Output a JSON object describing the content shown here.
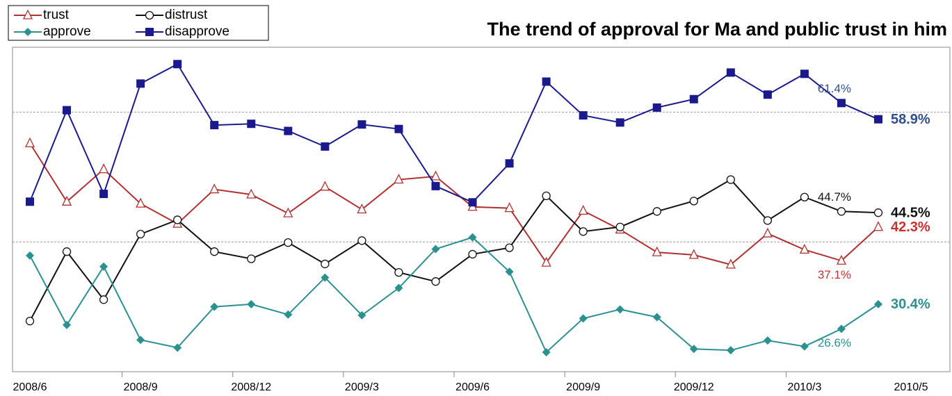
{
  "chart_data": {
    "type": "line",
    "title": "The trend of approval for Ma and public trust in him",
    "categories": [
      "2008/6",
      null,
      null,
      "2008/9",
      null,
      null,
      "2008/12",
      null,
      null,
      "2009/3",
      null,
      null,
      "2009/6",
      null,
      null,
      "2009/9",
      null,
      null,
      "2009/12",
      null,
      null,
      "2010/3",
      null,
      "2010/5"
    ],
    "ylim": [
      20,
      70
    ],
    "grid_lines": [
      40,
      60
    ],
    "series": [
      {
        "name": "trust",
        "color": "#b03030",
        "label_color": "#c83030",
        "marker": "triangle",
        "values": [
          55.2,
          46.2,
          51.2,
          45.9,
          42.8,
          48.1,
          47.3,
          44.4,
          48.5,
          45.0,
          49.6,
          50.1,
          45.4,
          45.2,
          36.8,
          44.8,
          41.9,
          38.4,
          38.0,
          36.5,
          41.3,
          38.8,
          37.1,
          42.3
        ],
        "value_labels": [
          null,
          null,
          null,
          null,
          null,
          null,
          null,
          null,
          null,
          null,
          null,
          null,
          null,
          null,
          null,
          null,
          null,
          null,
          null,
          null,
          null,
          null,
          "37.1%",
          "42.3%"
        ]
      },
      {
        "name": "distrust",
        "color": "#111111",
        "label_color": "#111111",
        "marker": "circle",
        "values": [
          27.8,
          38.5,
          31.1,
          41.2,
          43.4,
          38.5,
          37.4,
          39.9,
          36.6,
          40.2,
          35.3,
          33.9,
          38.1,
          39.1,
          47.1,
          41.6,
          42.3,
          44.7,
          46.3,
          49.6,
          43.3,
          46.9,
          44.7,
          44.5
        ],
        "value_labels": [
          null,
          null,
          null,
          null,
          null,
          null,
          null,
          null,
          null,
          null,
          null,
          null,
          null,
          null,
          null,
          null,
          null,
          null,
          null,
          null,
          null,
          null,
          "44.7%",
          "44.5%"
        ]
      },
      {
        "name": "approve",
        "color": "#2a9090",
        "label_color": "#2a9090",
        "marker": "diamond",
        "values": [
          37.9,
          27.2,
          36.2,
          24.9,
          23.7,
          30.0,
          30.4,
          28.8,
          34.5,
          28.7,
          32.9,
          38.9,
          40.7,
          35.4,
          23.0,
          28.2,
          29.6,
          28.4,
          23.5,
          23.3,
          24.8,
          23.9,
          26.6,
          30.4
        ],
        "value_labels": [
          null,
          null,
          null,
          null,
          null,
          null,
          null,
          null,
          null,
          null,
          null,
          null,
          null,
          null,
          null,
          null,
          null,
          null,
          null,
          null,
          null,
          null,
          "26.6%",
          "30.4%"
        ]
      },
      {
        "name": "disapprove",
        "color": "#1a1a8c",
        "label_color": "#2e4e8e",
        "marker": "square",
        "values": [
          46.2,
          60.3,
          47.4,
          64.4,
          67.4,
          58.0,
          58.2,
          57.1,
          54.7,
          58.1,
          57.4,
          48.6,
          46.1,
          52.1,
          64.7,
          59.5,
          58.4,
          60.7,
          62.0,
          66.1,
          62.7,
          65.9,
          61.4,
          58.9
        ],
        "value_labels": [
          null,
          null,
          null,
          null,
          null,
          null,
          null,
          null,
          null,
          null,
          null,
          null,
          null,
          null,
          null,
          null,
          null,
          null,
          null,
          null,
          null,
          null,
          "61.4%",
          "58.9%"
        ]
      }
    ]
  }
}
